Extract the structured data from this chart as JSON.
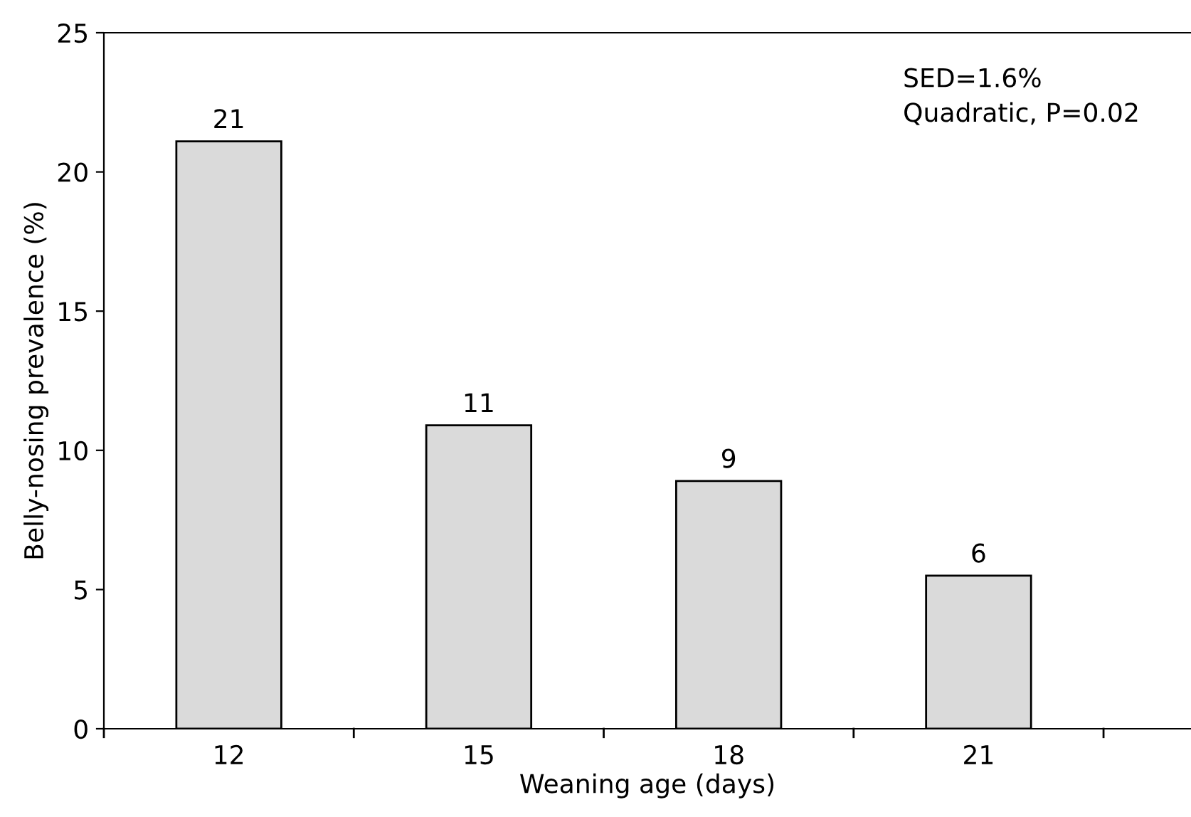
{
  "chart_data": {
    "type": "bar",
    "xlabel": "Weaning age (days)",
    "ylabel": "Belly-nosing prevalence (%)",
    "categories": [
      "12",
      "15",
      "18",
      "21"
    ],
    "values": [
      21.1,
      10.9,
      8.9,
      5.5
    ],
    "value_labels": [
      "21",
      "11",
      "9",
      "6"
    ],
    "color": "#dadada",
    "ylim": [
      0,
      25
    ],
    "yticks": [
      0,
      5,
      10,
      15,
      20,
      25
    ],
    "grid": false,
    "annotations": [
      "SED=1.6%",
      "Quadratic, P=0.02"
    ]
  }
}
